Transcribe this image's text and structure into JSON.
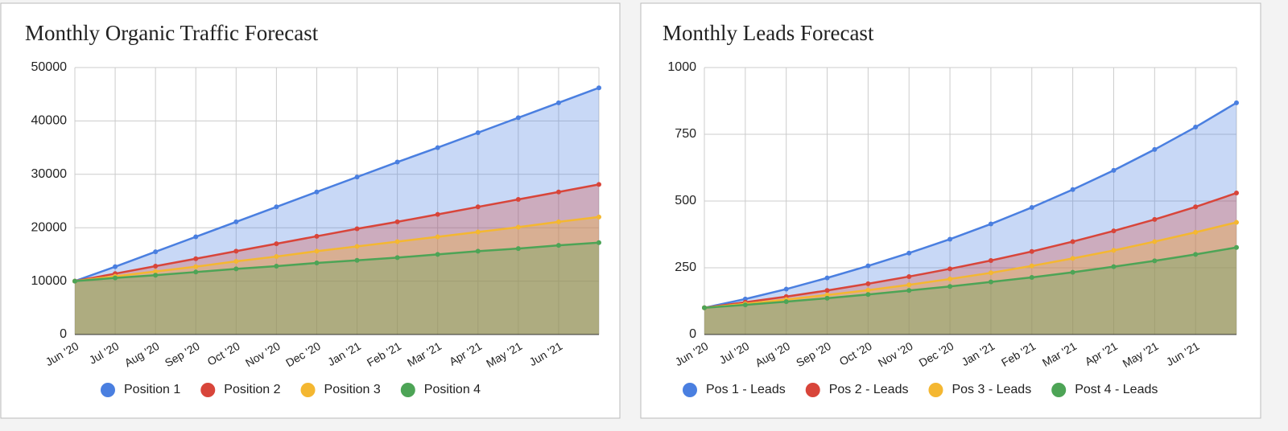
{
  "chart_data": [
    {
      "type": "area",
      "title": "Monthly Organic Traffic Forecast",
      "categories": [
        "Jun '20",
        "Jul '20",
        "Aug '20",
        "Sep '20",
        "Oct '20",
        "Nov '20",
        "Dec '20",
        "Jan '21",
        "Feb '21",
        "Mar '21",
        "Apr '21",
        "May '21",
        "Jun '21",
        null
      ],
      "series": [
        {
          "name": "Position 1",
          "color": "#4a7fe0",
          "values": [
            10000,
            12700,
            15500,
            18300,
            21100,
            23900,
            26700,
            29500,
            32300,
            35000,
            37800,
            40600,
            43400,
            46200
          ]
        },
        {
          "name": "Position 2",
          "color": "#d8453a",
          "values": [
            10000,
            11400,
            12800,
            14200,
            15600,
            17000,
            18400,
            19800,
            21100,
            22500,
            23900,
            25300,
            26700,
            28100
          ]
        },
        {
          "name": "Position 3",
          "color": "#f4b731",
          "values": [
            10000,
            10900,
            11800,
            12700,
            13700,
            14600,
            15600,
            16500,
            17400,
            18300,
            19200,
            20100,
            21100,
            22000
          ]
        },
        {
          "name": "Position 4",
          "color": "#4da456",
          "values": [
            10000,
            10600,
            11100,
            11700,
            12300,
            12800,
            13400,
            13900,
            14400,
            15000,
            15600,
            16100,
            16700,
            17200
          ]
        }
      ],
      "ylim": [
        0,
        50000
      ],
      "yticks": [
        0,
        10000,
        20000,
        30000,
        40000,
        50000
      ],
      "grid": true,
      "legend": "bottom"
    },
    {
      "type": "area",
      "title": "Monthly Leads Forecast",
      "categories": [
        "Jun '20",
        "Jul '20",
        "Aug '20",
        "Sep '20",
        "Oct '20",
        "Nov '20",
        "Dec '20",
        "Jan '21",
        "Feb '21",
        "Mar '21",
        "Apr '21",
        "May '21",
        "Jun '21",
        null
      ],
      "series": [
        {
          "name": "Pos 1 - Leads",
          "color": "#4a7fe0",
          "values": [
            100,
            133,
            170,
            212,
            257,
            305,
            357,
            414,
            476,
            543,
            615,
            693,
            777,
            868
          ]
        },
        {
          "name": "Pos 2 - Leads",
          "color": "#d8453a",
          "values": [
            100,
            121,
            142,
            165,
            190,
            217,
            246,
            277,
            311,
            348,
            388,
            431,
            478,
            530
          ]
        },
        {
          "name": "Pos 3 - Leads",
          "color": "#f4b731",
          "values": [
            100,
            115,
            131,
            148,
            166,
            186,
            208,
            231,
            257,
            285,
            315,
            348,
            383,
            420
          ]
        },
        {
          "name": "Post 4 - Leads",
          "color": "#4da456",
          "values": [
            100,
            111,
            123,
            136,
            150,
            165,
            180,
            197,
            214,
            233,
            254,
            276,
            300,
            326
          ]
        }
      ],
      "ylim": [
        0,
        1000
      ],
      "yticks": [
        0,
        250,
        500,
        750,
        1000
      ],
      "grid": true,
      "legend": "bottom"
    }
  ]
}
